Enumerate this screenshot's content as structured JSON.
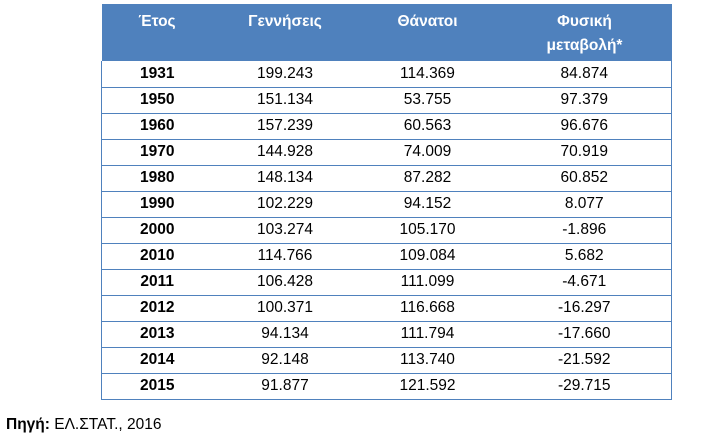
{
  "table": {
    "headers": [
      "Έτος",
      "Γεννήσεις",
      "Θάνατοι",
      "Φυσική",
      "μεταβολή*"
    ],
    "rows": [
      [
        "1931",
        "199.243",
        "114.369",
        "84.874"
      ],
      [
        "1950",
        "151.134",
        "53.755",
        "97.379"
      ],
      [
        "1960",
        "157.239",
        "60.563",
        "96.676"
      ],
      [
        "1970",
        "144.928",
        "74.009",
        "70.919"
      ],
      [
        "1980",
        "148.134",
        "87.282",
        "60.852"
      ],
      [
        "1990",
        "102.229",
        "94.152",
        "8.077"
      ],
      [
        "2000",
        "103.274",
        "105.170",
        "-1.896"
      ],
      [
        "2010",
        "114.766",
        "109.084",
        "5.682"
      ],
      [
        "2011",
        "106.428",
        "111.099",
        "-4.671"
      ],
      [
        "2012",
        "100.371",
        "116.668",
        "-16.297"
      ],
      [
        "2013",
        "94.134",
        "111.794",
        "-17.660"
      ],
      [
        "2014",
        "92.148",
        "113.740",
        "-21.592"
      ],
      [
        "2015",
        "91.877",
        "121.592",
        "-29.715"
      ]
    ],
    "header_color": "#4f81bd"
  },
  "source": {
    "label": "Πηγή:",
    "text": " ΕΛ.ΣΤΑΤ., 2016"
  }
}
